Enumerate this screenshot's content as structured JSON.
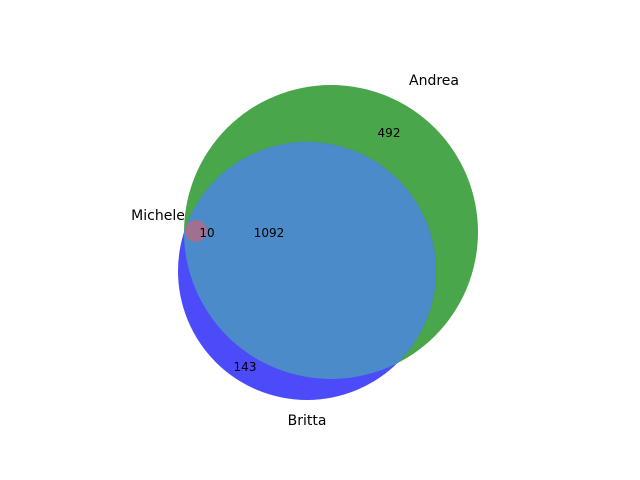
{
  "sets": {
    "andrea": {
      "label": "Andrea",
      "color": "#4aa64a"
    },
    "britta": {
      "label": "Britta",
      "color": "#4b4bfa"
    },
    "michele": {
      "label": "Michele",
      "color": "#a07090"
    }
  },
  "regions": {
    "andrea_only": "492",
    "britta_only": "143",
    "andrea_britta": "1092",
    "all_three": "10"
  },
  "colors": {
    "andrea_britta_overlap": "#4b8bc9",
    "background": "#ffffff"
  }
}
